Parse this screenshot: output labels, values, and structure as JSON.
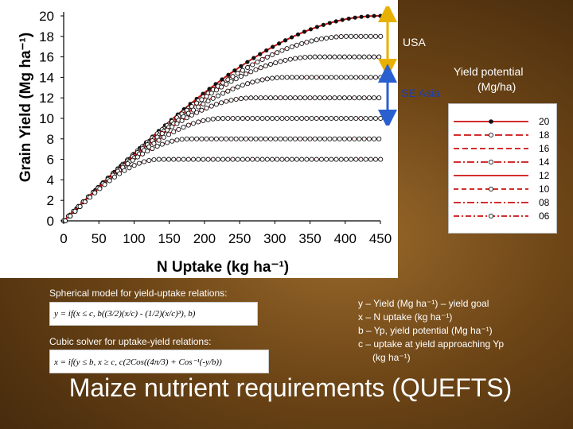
{
  "slide": {
    "title": "Maize nutrient requirements (QUEFTS)"
  },
  "annotations": {
    "usa": "USA",
    "se_asia": "SE Asia",
    "yield_potential_line1": "Yield potential",
    "yield_potential_line2": "(Mg/ha)"
  },
  "captions": {
    "spherical": "Spherical model for yield-uptake relations:",
    "cubic": "Cubic solver for uptake-yield relations:",
    "spherical_formula": "y = if(x ≤ c,  b((3/2)(x/c) - (1/2)(x/c)³),  b)",
    "cubic_formula": "x = if(y ≤ b, x ≥ c, c(2Cos((4π/3) + Cos⁻¹(-y/b))"
  },
  "definitions": {
    "y": "y – Yield (Mg ha⁻¹) – yield goal",
    "x": "x – N uptake (kg ha⁻¹)",
    "b": "b – Yp, yield potential (Mg ha⁻¹)",
    "c": "c – uptake at yield approaching Yp",
    "c_unit": "(kg ha⁻¹)"
  },
  "colors": {
    "accent_red": "#cc1111",
    "marker_black": "#111111",
    "arrow_gold": "#e8b000",
    "arrow_blue": "#2a5fd0"
  },
  "chart_data": {
    "type": "line",
    "xlabel": "N Uptake (kg ha⁻¹)",
    "ylabel": "Grain Yield (Mg ha⁻¹)",
    "xlim": [
      0,
      450
    ],
    "ylim": [
      0,
      20
    ],
    "x_ticks": [
      "0",
      "50",
      "100",
      "150",
      "200",
      "250",
      "300",
      "350",
      "400",
      "450"
    ],
    "y_ticks": [
      "0",
      "2",
      "4",
      "6",
      "8",
      "10",
      "12",
      "14",
      "16",
      "18",
      "20"
    ],
    "grid": false,
    "legend_position": "right",
    "legend_entries": [
      "20",
      "18",
      "16",
      "14",
      "12",
      "10",
      "08",
      "06"
    ],
    "series": [
      {
        "name": "20",
        "yield_potential": 20,
        "uptake_at_plateau": 448,
        "x": [
          0,
          50,
          100,
          150,
          200,
          250,
          300,
          350,
          400,
          450
        ],
        "y": [
          0,
          3.3,
          6.6,
          9.7,
          12.5,
          15.0,
          17.0,
          18.6,
          19.6,
          20.0
        ]
      },
      {
        "name": "18",
        "yield_potential": 18,
        "uptake_at_plateau": 403,
        "x": [
          0,
          50,
          100,
          150,
          200,
          250,
          300,
          350,
          400,
          450
        ],
        "y": [
          0,
          3.3,
          6.6,
          9.6,
          12.3,
          14.7,
          16.5,
          17.6,
          18.0,
          18.0
        ]
      },
      {
        "name": "16",
        "yield_potential": 16,
        "uptake_at_plateau": 358,
        "x": [
          0,
          50,
          100,
          150,
          200,
          250,
          300,
          350,
          400,
          450
        ],
        "y": [
          0,
          3.3,
          6.6,
          9.6,
          12.1,
          14.3,
          15.6,
          16.0,
          16.0,
          16.0
        ]
      },
      {
        "name": "14",
        "yield_potential": 14,
        "uptake_at_plateau": 314,
        "x": [
          0,
          50,
          100,
          150,
          200,
          250,
          300,
          350,
          400,
          450
        ],
        "y": [
          0,
          3.3,
          6.5,
          9.4,
          11.8,
          13.5,
          14.0,
          14.0,
          14.0,
          14.0
        ]
      },
      {
        "name": "12",
        "yield_potential": 12,
        "uptake_at_plateau": 269,
        "x": [
          0,
          50,
          100,
          150,
          200,
          250,
          300,
          350,
          400,
          450
        ],
        "y": [
          0,
          3.3,
          6.4,
          9.1,
          11.1,
          12.0,
          12.0,
          12.0,
          12.0,
          12.0
        ]
      },
      {
        "name": "10",
        "yield_potential": 10,
        "uptake_at_plateau": 224,
        "x": [
          0,
          50,
          100,
          150,
          200,
          250,
          300,
          350,
          400,
          450
        ],
        "y": [
          0,
          3.3,
          6.3,
          8.6,
          9.9,
          10.0,
          10.0,
          10.0,
          10.0,
          10.0
        ]
      },
      {
        "name": "08",
        "yield_potential": 8,
        "uptake_at_plateau": 179,
        "x": [
          0,
          50,
          100,
          150,
          200,
          250,
          300,
          350,
          400,
          450
        ],
        "y": [
          0,
          3.2,
          6.0,
          7.8,
          8.0,
          8.0,
          8.0,
          8.0,
          8.0,
          8.0
        ]
      },
      {
        "name": "06",
        "yield_potential": 6,
        "uptake_at_plateau": 134,
        "x": [
          0,
          50,
          100,
          150,
          200,
          250,
          300,
          350,
          400,
          450
        ],
        "y": [
          0,
          3.1,
          5.4,
          6.0,
          6.0,
          6.0,
          6.0,
          6.0,
          6.0,
          6.0
        ]
      }
    ]
  }
}
